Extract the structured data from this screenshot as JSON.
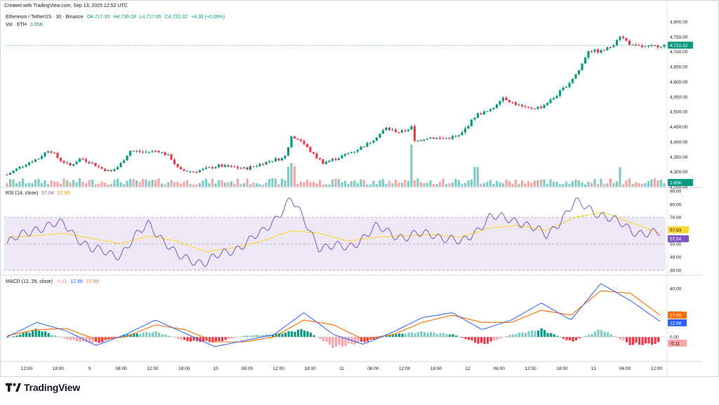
{
  "header": {
    "created": "Created with TradingView.com, Sep 13, 2025 12:52 UTC",
    "symbol": "Ethereum / TetherUS · 30 · Binance",
    "open": "O4,717.95",
    "high": "H4,730.18",
    "low": "L4,717.95",
    "close": "C4,722.32",
    "change": "+4.36 (+0.09%)",
    "vol_label": "Vol · ETH",
    "vol_value": "3.65K"
  },
  "rsi_legend": {
    "label": "RSI (14, close)",
    "rsi": "57.04",
    "ma": "57.93"
  },
  "macd_legend": {
    "label": "MACD (12, 26, close)",
    "hist": "-5.11",
    "macd": "12.88",
    "signal": "17.99"
  },
  "price_axis": [
    "4,800.00",
    "4,750.00",
    "4,700.00",
    "4,650.00",
    "4,600.00",
    "4,550.00",
    "4,500.00",
    "4,450.00",
    "4,400.00",
    "4,350.00",
    "4,300.00",
    "4,250.00"
  ],
  "price_ticks": [
    4800,
    4750,
    4700,
    4650,
    4600,
    4550,
    4500,
    4450,
    4400,
    4350,
    4300,
    4250
  ],
  "rsi_axis": [
    "90.00",
    "80.00",
    "70.00",
    "60.00",
    "50.00",
    "40.00",
    "30.00"
  ],
  "rsi_ticks": [
    90,
    80,
    70,
    60,
    50,
    40,
    30
  ],
  "macd_axis": [
    "40.00",
    "20.00",
    "0.00"
  ],
  "macd_ticks": [
    40,
    20,
    0
  ],
  "time_axis": [
    "12:00",
    "18:00",
    "9",
    "06:00",
    "12:00",
    "18:00",
    "10",
    "06:00",
    "12:00",
    "18:00",
    "11",
    "06:00",
    "12:00",
    "18:00",
    "12",
    "06:00",
    "12:00",
    "18:00",
    "13",
    "06:00",
    "12:00"
  ],
  "badges": {
    "price": "4,722.32",
    "vol": "3.65K",
    "rsi_ma": "57.93",
    "rsi": "57.04",
    "signal": "17.99",
    "macd": "12.88",
    "hist": "-5.11"
  },
  "colors": {
    "up": "#089981",
    "down": "#f23645",
    "vol_up": "#80cbc4",
    "vol_down": "#f7a5a7",
    "rsi": "#7e57c2",
    "rsi_ma": "#fdd835",
    "macd": "#2962ff",
    "signal": "#ff6d00",
    "rsi_band": "#ede7f6"
  },
  "brand": "TradingView",
  "chart_data": [
    {
      "type": "candlestick",
      "title": "Ethereum / TetherUS · 30 · Binance",
      "ylim": [
        4250,
        4800
      ],
      "series": [
        {
          "name": "close (approx. trace)",
          "x": [
            "Sep 8 09:00",
            "Sep 8 15:00",
            "Sep 8 21:00",
            "Sep 9 03:00",
            "Sep 9 09:00",
            "Sep 9 15:00",
            "Sep 9 21:00",
            "Sep 10 03:00",
            "Sep 10 09:00",
            "Sep 10 12:30",
            "Sep 10 18:00",
            "Sep 11 00:00",
            "Sep 11 06:00",
            "Sep 11 12:00",
            "Sep 11 18:00",
            "Sep 12 00:00",
            "Sep 12 06:00",
            "Sep 12 12:00",
            "Sep 12 18:00",
            "Sep 13 00:00",
            "Sep 13 06:00",
            "Sep 13 12:00"
          ],
          "values": [
            4290,
            4335,
            4330,
            4305,
            4335,
            4370,
            4300,
            4315,
            4325,
            4360,
            4345,
            4370,
            4445,
            4440,
            4415,
            4500,
            4520,
            4530,
            4640,
            4700,
            4745,
            4722
          ]
        }
      ]
    },
    {
      "type": "line",
      "title": "RSI (14, close)",
      "ylim": [
        30,
        90
      ],
      "series": [
        {
          "name": "RSI",
          "values": [
            50,
            62,
            65,
            45,
            42,
            66,
            40,
            36,
            46,
            58,
            84,
            48,
            47,
            62,
            55,
            58,
            50,
            70,
            68,
            56,
            81,
            72,
            60,
            57.04
          ]
        },
        {
          "name": "RSI-based MA",
          "values": [
            55,
            56,
            58,
            54,
            50,
            56,
            52,
            44,
            47,
            52,
            60,
            58,
            52,
            55,
            56,
            57,
            55,
            62,
            64,
            60,
            70,
            74,
            66,
            57.93
          ]
        }
      ]
    },
    {
      "type": "line",
      "title": "MACD (12, 26, close)",
      "ylim": [
        -15,
        48
      ],
      "series": [
        {
          "name": "MACD",
          "values": [
            0,
            12,
            5,
            -7,
            2,
            14,
            3,
            -8,
            -3,
            2,
            20,
            2,
            -6,
            4,
            16,
            20,
            6,
            14,
            28,
            14,
            44,
            30,
            12.88
          ]
        },
        {
          "name": "Signal",
          "values": [
            1,
            6,
            7,
            -2,
            0,
            10,
            6,
            -4,
            -4,
            0,
            14,
            10,
            -2,
            2,
            12,
            18,
            12,
            12,
            22,
            18,
            38,
            36,
            17.99
          ]
        },
        {
          "name": "Histogram",
          "values": [
            -1,
            6,
            -2,
            -5,
            2,
            4,
            -3,
            -4,
            1,
            2,
            6,
            -8,
            -4,
            2,
            4,
            2,
            -6,
            2,
            6,
            -4,
            6,
            -6,
            -5.11
          ]
        }
      ]
    }
  ]
}
